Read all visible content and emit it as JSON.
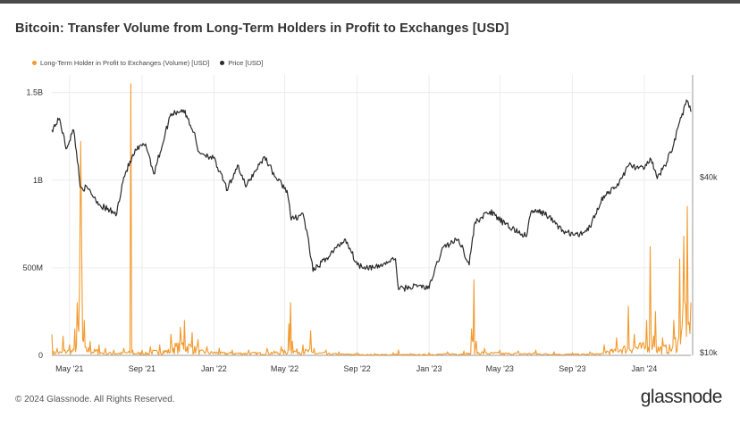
{
  "header": {
    "title": "Bitcoin: Transfer Volume from Long-Term Holders in Profit to Exchanges [USD]"
  },
  "footer": {
    "copyright": "© 2024 Glassnode. All Rights Reserved.",
    "brand": "glassnode"
  },
  "chart_data": {
    "type": "line",
    "title": "Bitcoin: Transfer Volume from Long-Term Holders in Profit to Exchanges [USD]",
    "x_ticks": [
      "May '21",
      "Sep '21",
      "Jan '22",
      "May '22",
      "Sep '22",
      "Jan '23",
      "May '23",
      "Sep '23",
      "Jan '24"
    ],
    "x_range": [
      "2021-04-01",
      "2024-03-20"
    ],
    "y_left": {
      "ticks": [
        "0",
        "500M",
        "1B",
        "1.5B"
      ],
      "tick_values": [
        0,
        500000000,
        1000000000,
        1500000000
      ],
      "range": [
        0,
        1600000000
      ]
    },
    "y_right": {
      "ticks": [
        "$10k",
        "$40k"
      ],
      "scale": "log"
    },
    "legend_position": "top-left",
    "grid": true,
    "colors": {
      "volume": "#f29a2e",
      "price": "#2a2a2a",
      "grid": "#ececec"
    },
    "series": [
      {
        "name": "Long-Term Holder in Profit to Exchanges (Volume) [USD]",
        "axis": "left",
        "points": [
          [
            "2021-04-01",
            120000000
          ],
          [
            "2021-04-10",
            40000000
          ],
          [
            "2021-04-20",
            110000000
          ],
          [
            "2021-05-01",
            60000000
          ],
          [
            "2021-05-10",
            150000000
          ],
          [
            "2021-05-14",
            300000000
          ],
          [
            "2021-05-18",
            400000000
          ],
          [
            "2021-05-20",
            1220000000
          ],
          [
            "2021-05-22",
            500000000
          ],
          [
            "2021-05-26",
            200000000
          ],
          [
            "2021-06-05",
            80000000
          ],
          [
            "2021-06-20",
            60000000
          ],
          [
            "2021-07-01",
            40000000
          ],
          [
            "2021-07-15",
            30000000
          ],
          [
            "2021-08-01",
            40000000
          ],
          [
            "2021-08-13",
            1550000000
          ],
          [
            "2021-08-16",
            30000000
          ],
          [
            "2021-09-01",
            30000000
          ],
          [
            "2021-09-15",
            50000000
          ],
          [
            "2021-10-01",
            60000000
          ],
          [
            "2021-10-20",
            120000000
          ],
          [
            "2021-11-05",
            160000000
          ],
          [
            "2021-11-12",
            200000000
          ],
          [
            "2021-11-25",
            130000000
          ],
          [
            "2021-12-05",
            90000000
          ],
          [
            "2021-12-20",
            50000000
          ],
          [
            "2022-01-10",
            40000000
          ],
          [
            "2022-02-01",
            30000000
          ],
          [
            "2022-03-01",
            30000000
          ],
          [
            "2022-04-01",
            40000000
          ],
          [
            "2022-04-25",
            50000000
          ],
          [
            "2022-05-08",
            180000000
          ],
          [
            "2022-05-11",
            300000000
          ],
          [
            "2022-05-14",
            80000000
          ],
          [
            "2022-06-01",
            60000000
          ],
          [
            "2022-06-14",
            140000000
          ],
          [
            "2022-06-20",
            40000000
          ],
          [
            "2022-07-10",
            30000000
          ],
          [
            "2022-08-01",
            20000000
          ],
          [
            "2022-09-01",
            15000000
          ],
          [
            "2022-10-01",
            10000000
          ],
          [
            "2022-11-01",
            15000000
          ],
          [
            "2022-11-10",
            30000000
          ],
          [
            "2022-12-01",
            10000000
          ],
          [
            "2023-01-01",
            15000000
          ],
          [
            "2023-02-01",
            20000000
          ],
          [
            "2023-03-01",
            25000000
          ],
          [
            "2023-03-14",
            150000000
          ],
          [
            "2023-03-18",
            430000000
          ],
          [
            "2023-03-22",
            80000000
          ],
          [
            "2023-04-05",
            40000000
          ],
          [
            "2023-05-01",
            30000000
          ],
          [
            "2023-06-01",
            25000000
          ],
          [
            "2023-07-01",
            30000000
          ],
          [
            "2023-08-01",
            20000000
          ],
          [
            "2023-09-01",
            15000000
          ],
          [
            "2023-10-01",
            20000000
          ],
          [
            "2023-10-25",
            60000000
          ],
          [
            "2023-11-15",
            100000000
          ],
          [
            "2023-12-05",
            280000000
          ],
          [
            "2023-12-15",
            120000000
          ],
          [
            "2024-01-05",
            200000000
          ],
          [
            "2024-01-11",
            620000000
          ],
          [
            "2024-01-20",
            250000000
          ],
          [
            "2024-02-01",
            100000000
          ],
          [
            "2024-02-20",
            200000000
          ],
          [
            "2024-03-01",
            550000000
          ],
          [
            "2024-03-08",
            680000000
          ],
          [
            "2024-03-14",
            850000000
          ],
          [
            "2024-03-20",
            300000000
          ]
        ]
      },
      {
        "name": "Price [USD]",
        "axis": "right",
        "points": [
          [
            "2021-04-01",
            58000
          ],
          [
            "2021-04-14",
            63500
          ],
          [
            "2021-04-25",
            50000
          ],
          [
            "2021-05-08",
            58000
          ],
          [
            "2021-05-19",
            37000
          ],
          [
            "2021-06-01",
            36500
          ],
          [
            "2021-06-22",
            32000
          ],
          [
            "2021-07-20",
            29800
          ],
          [
            "2021-08-01",
            40000
          ],
          [
            "2021-08-22",
            49500
          ],
          [
            "2021-09-07",
            52000
          ],
          [
            "2021-09-21",
            41000
          ],
          [
            "2021-10-05",
            51000
          ],
          [
            "2021-10-20",
            66000
          ],
          [
            "2021-11-10",
            68000
          ],
          [
            "2021-11-28",
            57000
          ],
          [
            "2021-12-05",
            49000
          ],
          [
            "2021-12-31",
            46500
          ],
          [
            "2022-01-10",
            41800
          ],
          [
            "2022-01-24",
            36000
          ],
          [
            "2022-02-10",
            44000
          ],
          [
            "2022-02-24",
            37000
          ],
          [
            "2022-03-28",
            47000
          ],
          [
            "2022-04-15",
            40000
          ],
          [
            "2022-05-05",
            36000
          ],
          [
            "2022-05-12",
            28500
          ],
          [
            "2022-06-01",
            30000
          ],
          [
            "2022-06-18",
            19000
          ],
          [
            "2022-07-10",
            21000
          ],
          [
            "2022-08-12",
            24500
          ],
          [
            "2022-09-01",
            20000
          ],
          [
            "2022-10-01",
            19500
          ],
          [
            "2022-11-05",
            21000
          ],
          [
            "2022-11-10",
            16500
          ],
          [
            "2022-12-15",
            17000
          ],
          [
            "2023-01-01",
            16600
          ],
          [
            "2023-01-25",
            23000
          ],
          [
            "2023-02-20",
            24500
          ],
          [
            "2023-03-10",
            20000
          ],
          [
            "2023-03-20",
            28000
          ],
          [
            "2023-04-14",
            30500
          ],
          [
            "2023-05-10",
            27500
          ],
          [
            "2023-06-15",
            25000
          ],
          [
            "2023-06-23",
            30500
          ],
          [
            "2023-07-15",
            30200
          ],
          [
            "2023-08-17",
            26000
          ],
          [
            "2023-09-11",
            25200
          ],
          [
            "2023-10-01",
            27000
          ],
          [
            "2023-10-24",
            34500
          ],
          [
            "2023-11-15",
            37000
          ],
          [
            "2023-12-06",
            44000
          ],
          [
            "2023-12-31",
            42500
          ],
          [
            "2024-01-11",
            46500
          ],
          [
            "2024-01-23",
            39500
          ],
          [
            "2024-02-08",
            45000
          ],
          [
            "2024-02-20",
            52000
          ],
          [
            "2024-03-01",
            62000
          ],
          [
            "2024-03-14",
            73000
          ],
          [
            "2024-03-20",
            67000
          ]
        ]
      }
    ]
  }
}
